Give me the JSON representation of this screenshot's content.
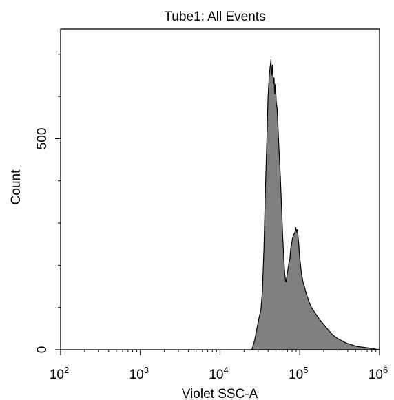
{
  "chart_data": {
    "type": "area",
    "title": "Tube1: All Events",
    "xlabel": "Violet SSC-A",
    "ylabel": "Count",
    "x_scale": "log",
    "xlim": [
      100,
      1000000
    ],
    "ylim": [
      0,
      760
    ],
    "x_ticks": [
      {
        "base": "10",
        "exp": "2",
        "value": 100
      },
      {
        "base": "10",
        "exp": "3",
        "value": 1000
      },
      {
        "base": "10",
        "exp": "4",
        "value": 10000
      },
      {
        "base": "10",
        "exp": "5",
        "value": 100000
      },
      {
        "base": "10",
        "exp": "6",
        "value": 1000000
      }
    ],
    "y_ticks": [
      {
        "label": "0",
        "value": 0
      },
      {
        "label": "500",
        "value": 500
      }
    ],
    "fill_color": "#808080",
    "line_color": "#000000",
    "series": [
      {
        "x": [
          25000,
          27000,
          29000,
          31000,
          32500,
          34000,
          35500,
          37000,
          38500,
          40000,
          41500,
          42500,
          43500,
          44500,
          45500,
          46500,
          47500,
          48500,
          49500,
          50500,
          52000,
          53500,
          55000,
          57000,
          59000,
          61000,
          63000,
          65000,
          67000,
          69000,
          71000,
          73000,
          75000,
          77000,
          79000,
          81000,
          83000,
          85000,
          87000,
          89000,
          91000,
          93000,
          95000,
          97000,
          100000,
          105000,
          110000,
          116000,
          122000,
          130000,
          140000,
          152000,
          165000,
          180000,
          200000,
          225000,
          255000,
          290000,
          330000,
          380000,
          440000,
          520000,
          620000,
          740000,
          870000,
          1000000
        ],
        "y": [
          0,
          20,
          50,
          78,
          95,
          140,
          240,
          380,
          490,
          600,
          655,
          670,
          688,
          650,
          675,
          630,
          645,
          605,
          630,
          590,
          570,
          520,
          470,
          410,
          340,
          270,
          215,
          175,
          160,
          175,
          190,
          205,
          215,
          240,
          250,
          265,
          270,
          275,
          278,
          290,
          280,
          285,
          270,
          250,
          215,
          180,
          160,
          145,
          130,
          115,
          100,
          90,
          80,
          70,
          60,
          48,
          36,
          28,
          22,
          16,
          12,
          8,
          6,
          4,
          2,
          0
        ]
      }
    ]
  }
}
